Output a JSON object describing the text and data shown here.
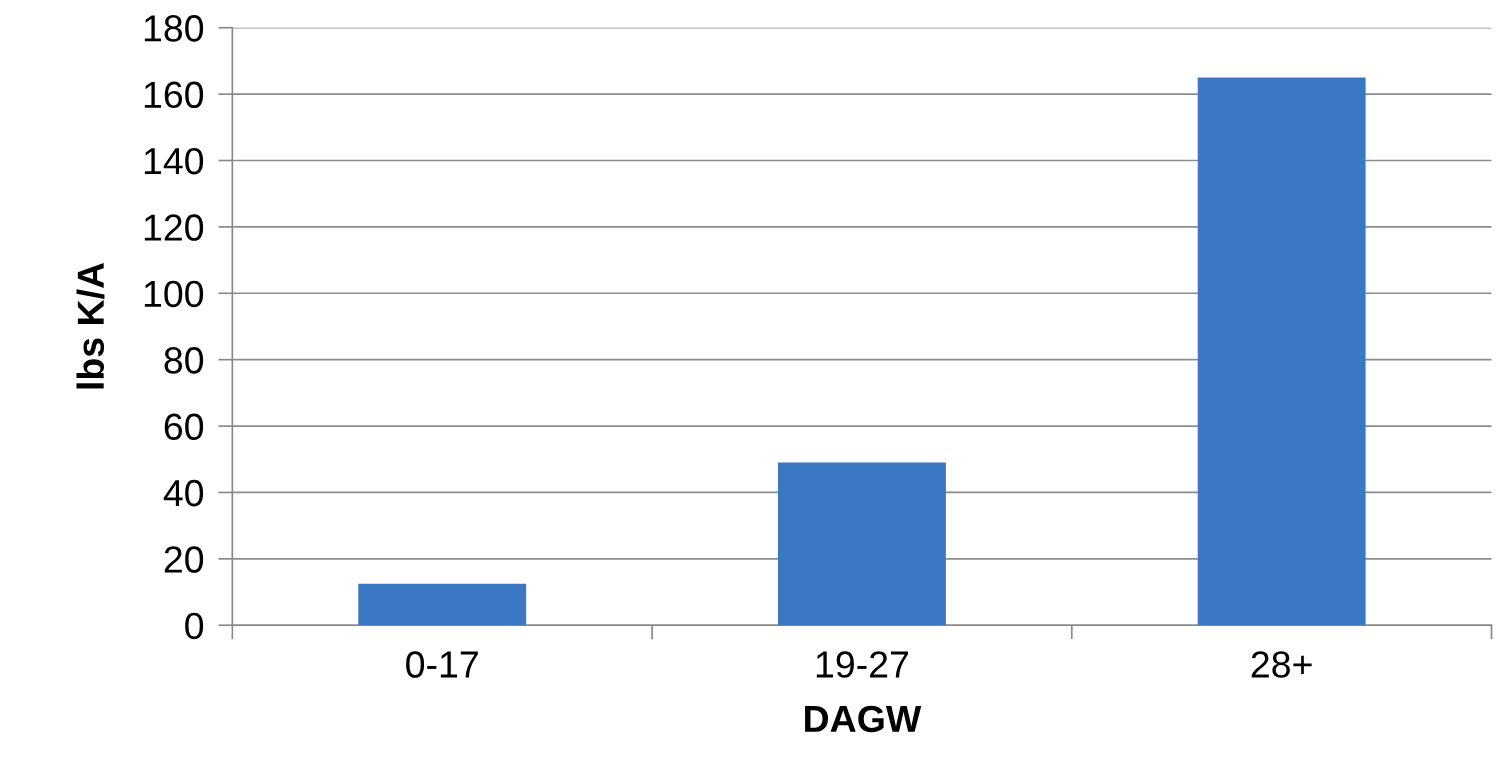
{
  "chart_data": {
    "type": "bar",
    "xlabel": "DAGW",
    "ylabel": "lbs K/A",
    "categories": [
      "0-17",
      "19-27",
      "28+"
    ],
    "values": [
      12.5,
      49,
      165
    ],
    "color": "#3a78c4",
    "ylim": [
      0,
      180
    ],
    "yticks": [
      0,
      20,
      40,
      60,
      80,
      100,
      120,
      140,
      160,
      180
    ],
    "grid": "y",
    "legend": false
  }
}
